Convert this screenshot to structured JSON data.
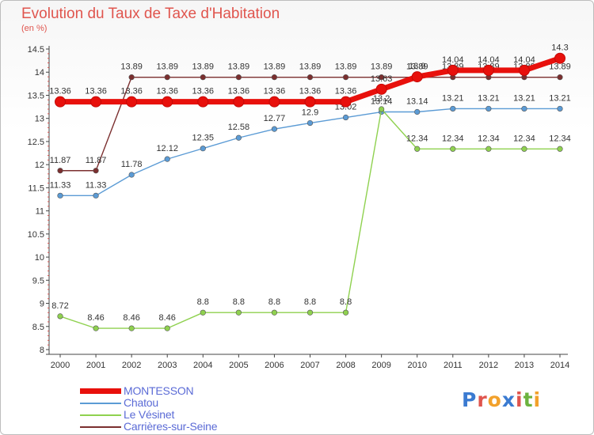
{
  "chart_data": {
    "type": "line",
    "title": "Evolution du Taux de Taxe d'Habitation",
    "subtitle": "(en %)",
    "x": [
      "2000",
      "2001",
      "2002",
      "2003",
      "2004",
      "2005",
      "2006",
      "2007",
      "2008",
      "2009",
      "2010",
      "2011",
      "2012",
      "2013",
      "2014"
    ],
    "ylim": [
      8,
      14.5
    ],
    "yticks": [
      "8",
      "8.5",
      "9",
      "9.5",
      "10",
      "10.5",
      "11",
      "11.5",
      "12",
      "12.5",
      "13",
      "13.5",
      "14",
      "14.5"
    ],
    "grid": false,
    "legend_position": "bottom-left",
    "series": [
      {
        "name": "Chatou",
        "color": "#5b9bd5",
        "values": [
          11.33,
          11.33,
          11.78,
          12.12,
          12.35,
          12.58,
          12.77,
          12.9,
          13.02,
          13.14,
          13.14,
          13.21,
          13.21,
          13.21,
          13.21
        ],
        "labels": [
          "11.33",
          "11.33",
          "11.78",
          "12.12",
          "12.35",
          "12.58",
          "12.77",
          "12.9",
          "13.02",
          "13.14",
          "13.14",
          "13.21",
          "13.21",
          "13.21",
          "13.21"
        ]
      },
      {
        "name": "Le Vésinet",
        "color": "#8fd14f",
        "values": [
          8.72,
          8.46,
          8.46,
          8.46,
          8.8,
          8.8,
          8.8,
          8.8,
          8.8,
          13.2,
          12.34,
          12.34,
          12.34,
          12.34,
          12.34
        ],
        "labels": [
          "8.72",
          "8.46",
          "8.46",
          "8.46",
          "8.8",
          "8.8",
          "8.8",
          "8.8",
          "8.8",
          "13.2",
          "12.34",
          "12.34",
          "12.34",
          "12.34",
          "12.34"
        ]
      },
      {
        "name": "Carrières-sur-Seine",
        "color": "#7b2f2f",
        "values": [
          11.87,
          11.87,
          13.89,
          13.89,
          13.89,
          13.89,
          13.89,
          13.89,
          13.89,
          13.89,
          13.89,
          13.89,
          13.89,
          13.89,
          13.89
        ],
        "labels": [
          "11.87",
          "11.87",
          "13.89",
          "13.89",
          "13.89",
          "13.89",
          "13.89",
          "13.89",
          "13.89",
          "13.89",
          "13.89",
          "13.89",
          "13.89",
          "13.89",
          "13.89"
        ]
      },
      {
        "name": "MONTESSON",
        "color": "#e8100c",
        "values": [
          13.36,
          13.36,
          13.36,
          13.36,
          13.36,
          13.36,
          13.36,
          13.36,
          13.36,
          13.63,
          13.9,
          14.04,
          14.04,
          14.04,
          14.3
        ],
        "labels": [
          "13.36",
          "13.36",
          "13.36",
          "13.36",
          "13.36",
          "13.36",
          "13.36",
          "13.36",
          "13.36",
          "13.63",
          "13.9",
          "14.04",
          "14.04",
          "14.04",
          "14.3"
        ]
      }
    ]
  },
  "legend": [
    {
      "name": "MONTESSON",
      "color": "#e8100c",
      "thick": true
    },
    {
      "name": "Chatou",
      "color": "#5b9bd5",
      "thick": false
    },
    {
      "name": "Le Vésinet",
      "color": "#8fd14f",
      "thick": false
    },
    {
      "name": "Carrières-sur-Seine",
      "color": "#7b2f2f",
      "thick": false
    }
  ],
  "logo": {
    "text": "Proxiti"
  }
}
